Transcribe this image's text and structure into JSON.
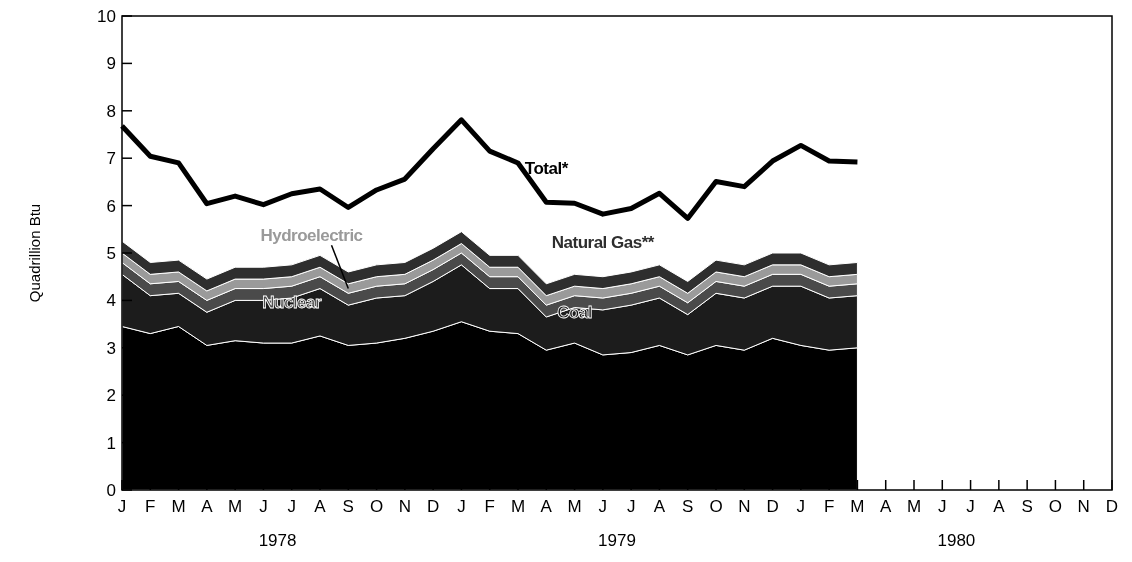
{
  "chart_data": {
    "type": "area",
    "stacked": true,
    "ylabel": "Quadrillion Btu",
    "ylim": [
      0,
      10
    ],
    "yticks": [
      0,
      1,
      2,
      3,
      4,
      5,
      6,
      7,
      8,
      9,
      10
    ],
    "grid": false,
    "categories": [
      "J",
      "F",
      "M",
      "A",
      "M",
      "J",
      "J",
      "A",
      "S",
      "O",
      "N",
      "D",
      "J",
      "F",
      "M",
      "A",
      "M",
      "J",
      "J",
      "A",
      "S",
      "O",
      "N",
      "D",
      "J",
      "F",
      "M",
      "A",
      "M",
      "J",
      "J",
      "A",
      "S",
      "O",
      "N",
      "D"
    ],
    "annotations": [
      "1978",
      "1979",
      "1980"
    ],
    "series": [
      {
        "color": "#000000",
        "values": [
          3.45,
          3.3,
          3.45,
          3.05,
          3.15,
          3.1,
          3.1,
          3.25,
          3.05,
          3.1,
          3.2,
          3.35,
          3.55,
          3.35,
          3.3,
          2.95,
          3.1,
          2.85,
          2.9,
          3.05,
          2.85,
          3.05,
          2.95,
          3.2,
          3.05,
          2.95,
          3.0,
          null,
          null,
          null,
          null,
          null,
          null,
          null,
          null,
          null
        ]
      },
      {
        "name": "Coal",
        "color": "#1c1c1c",
        "values": [
          1.1,
          0.8,
          0.7,
          0.7,
          0.85,
          0.9,
          0.95,
          1.0,
          0.85,
          0.95,
          0.9,
          1.05,
          1.2,
          0.9,
          0.95,
          0.7,
          0.75,
          0.95,
          1.0,
          1.0,
          0.85,
          1.1,
          1.1,
          1.1,
          1.25,
          1.1,
          1.1,
          null,
          null,
          null,
          null,
          null,
          null,
          null,
          null,
          null
        ]
      },
      {
        "name": "Nuclear",
        "color": "#4a4a4a",
        "values": [
          0.25,
          0.25,
          0.25,
          0.25,
          0.25,
          0.25,
          0.25,
          0.25,
          0.25,
          0.25,
          0.25,
          0.25,
          0.25,
          0.25,
          0.25,
          0.25,
          0.25,
          0.25,
          0.25,
          0.25,
          0.25,
          0.25,
          0.25,
          0.25,
          0.25,
          0.25,
          0.25,
          null,
          null,
          null,
          null,
          null,
          null,
          null,
          null,
          null
        ]
      },
      {
        "name": "Hydroelectric",
        "color": "#9a9a9a",
        "values": [
          0.2,
          0.2,
          0.2,
          0.2,
          0.2,
          0.2,
          0.2,
          0.2,
          0.2,
          0.2,
          0.2,
          0.2,
          0.2,
          0.2,
          0.2,
          0.2,
          0.2,
          0.2,
          0.2,
          0.2,
          0.2,
          0.2,
          0.2,
          0.2,
          0.2,
          0.2,
          0.2,
          null,
          null,
          null,
          null,
          null,
          null,
          null,
          null,
          null
        ]
      },
      {
        "name": "Natural Gas**",
        "color": "#2e2e2e",
        "values": [
          0.25,
          0.25,
          0.25,
          0.25,
          0.25,
          0.25,
          0.25,
          0.25,
          0.25,
          0.25,
          0.25,
          0.25,
          0.25,
          0.25,
          0.25,
          0.25,
          0.25,
          0.25,
          0.25,
          0.25,
          0.25,
          0.25,
          0.25,
          0.25,
          0.25,
          0.25,
          0.25,
          null,
          null,
          null,
          null,
          null,
          null,
          null,
          null,
          null
        ]
      },
      {
        "name": "Total*",
        "type": "line",
        "color": "#000000",
        "values": [
          7.68,
          7.04,
          6.9,
          6.04,
          6.2,
          6.02,
          6.25,
          6.35,
          5.96,
          6.33,
          6.56,
          7.2,
          7.81,
          7.15,
          6.9,
          6.07,
          6.05,
          5.82,
          5.94,
          6.26,
          5.73,
          6.51,
          6.4,
          6.94,
          7.27,
          6.94,
          6.92,
          null,
          null,
          null,
          null,
          null,
          null,
          null,
          null,
          null
        ]
      }
    ]
  }
}
